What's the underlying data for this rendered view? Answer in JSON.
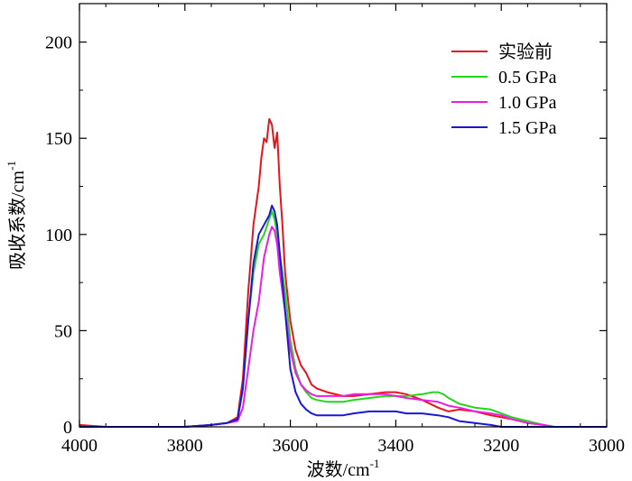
{
  "chart_data": {
    "type": "line",
    "xlabel": "波数/cm",
    "xlabel_sup": "-1",
    "ylabel": "吸收系数/cm",
    "ylabel_sup": "-1",
    "xlim": [
      4000,
      3000
    ],
    "ylim": [
      0,
      220
    ],
    "x_ticks": [
      4000,
      3800,
      3600,
      3400,
      3200,
      3000
    ],
    "y_ticks": [
      0,
      50,
      100,
      150,
      200
    ],
    "legend_position": "top-right",
    "series": [
      {
        "name": "实验前",
        "color": "#e8141c",
        "x": [
          4000,
          3950,
          3900,
          3850,
          3800,
          3750,
          3720,
          3700,
          3690,
          3680,
          3670,
          3660,
          3655,
          3650,
          3645,
          3640,
          3635,
          3630,
          3625,
          3620,
          3615,
          3610,
          3600,
          3590,
          3580,
          3570,
          3560,
          3550,
          3530,
          3500,
          3480,
          3450,
          3420,
          3400,
          3380,
          3350,
          3320,
          3300,
          3280,
          3250,
          3220,
          3200,
          3180,
          3150,
          3120,
          3100,
          3050,
          3000
        ],
        "y": [
          1,
          0,
          0,
          0,
          0,
          1,
          2,
          5,
          25,
          70,
          105,
          125,
          140,
          150,
          148,
          160,
          157,
          145,
          153,
          125,
          105,
          80,
          55,
          40,
          32,
          28,
          22,
          20,
          18,
          16,
          16,
          17,
          18,
          18,
          17,
          14,
          10,
          8,
          9,
          8,
          6,
          5,
          4,
          2,
          1,
          0,
          0,
          0
        ]
      },
      {
        "name": "0.5 GPa",
        "color": "#22d51c",
        "x": [
          4000,
          3950,
          3900,
          3850,
          3800,
          3750,
          3720,
          3700,
          3690,
          3680,
          3670,
          3660,
          3650,
          3640,
          3635,
          3630,
          3625,
          3620,
          3610,
          3600,
          3590,
          3580,
          3570,
          3560,
          3550,
          3530,
          3500,
          3480,
          3450,
          3420,
          3400,
          3380,
          3350,
          3330,
          3320,
          3310,
          3300,
          3280,
          3250,
          3220,
          3200,
          3180,
          3150,
          3120,
          3100,
          3050,
          3000
        ],
        "y": [
          0,
          0,
          0,
          0,
          0,
          1,
          2,
          4,
          20,
          55,
          80,
          95,
          100,
          108,
          112,
          108,
          100,
          90,
          70,
          45,
          30,
          22,
          18,
          15,
          14,
          13,
          13,
          14,
          15,
          16,
          16,
          16,
          17,
          18,
          18,
          17,
          15,
          12,
          10,
          9,
          7,
          5,
          3,
          1,
          0,
          0,
          0
        ]
      },
      {
        "name": "1.0 GPa",
        "color": "#ea1ee3",
        "x": [
          4000,
          3950,
          3900,
          3850,
          3800,
          3750,
          3720,
          3700,
          3690,
          3680,
          3670,
          3660,
          3650,
          3640,
          3635,
          3630,
          3625,
          3620,
          3610,
          3600,
          3590,
          3580,
          3570,
          3560,
          3550,
          3530,
          3500,
          3480,
          3450,
          3420,
          3400,
          3380,
          3350,
          3320,
          3300,
          3280,
          3250,
          3220,
          3200,
          3180,
          3150,
          3120,
          3100,
          3050,
          3000
        ],
        "y": [
          0,
          0,
          0,
          0,
          0,
          1,
          2,
          3,
          10,
          30,
          50,
          65,
          88,
          100,
          104,
          102,
          95,
          80,
          60,
          40,
          28,
          22,
          19,
          17,
          16,
          16,
          16,
          17,
          17,
          17,
          16,
          15,
          14,
          13,
          11,
          10,
          8,
          7,
          6,
          4,
          2,
          1,
          0,
          0,
          0
        ]
      },
      {
        "name": "1.5 GPa",
        "color": "#1a18d2",
        "x": [
          4000,
          3950,
          3900,
          3850,
          3800,
          3750,
          3720,
          3700,
          3690,
          3680,
          3670,
          3660,
          3650,
          3640,
          3635,
          3630,
          3625,
          3620,
          3610,
          3600,
          3590,
          3580,
          3570,
          3560,
          3550,
          3530,
          3500,
          3480,
          3450,
          3420,
          3400,
          3380,
          3350,
          3320,
          3300,
          3280,
          3250,
          3220,
          3200,
          3180,
          3150,
          3120,
          3100,
          3050,
          3000
        ],
        "y": [
          0,
          0,
          0,
          0,
          0,
          1,
          2,
          4,
          20,
          55,
          85,
          100,
          105,
          110,
          115,
          112,
          105,
          90,
          60,
          30,
          18,
          12,
          9,
          7,
          6,
          6,
          6,
          7,
          8,
          8,
          8,
          7,
          7,
          6,
          5,
          3,
          2,
          1,
          0,
          0,
          0,
          0,
          0,
          0,
          0
        ]
      }
    ]
  }
}
